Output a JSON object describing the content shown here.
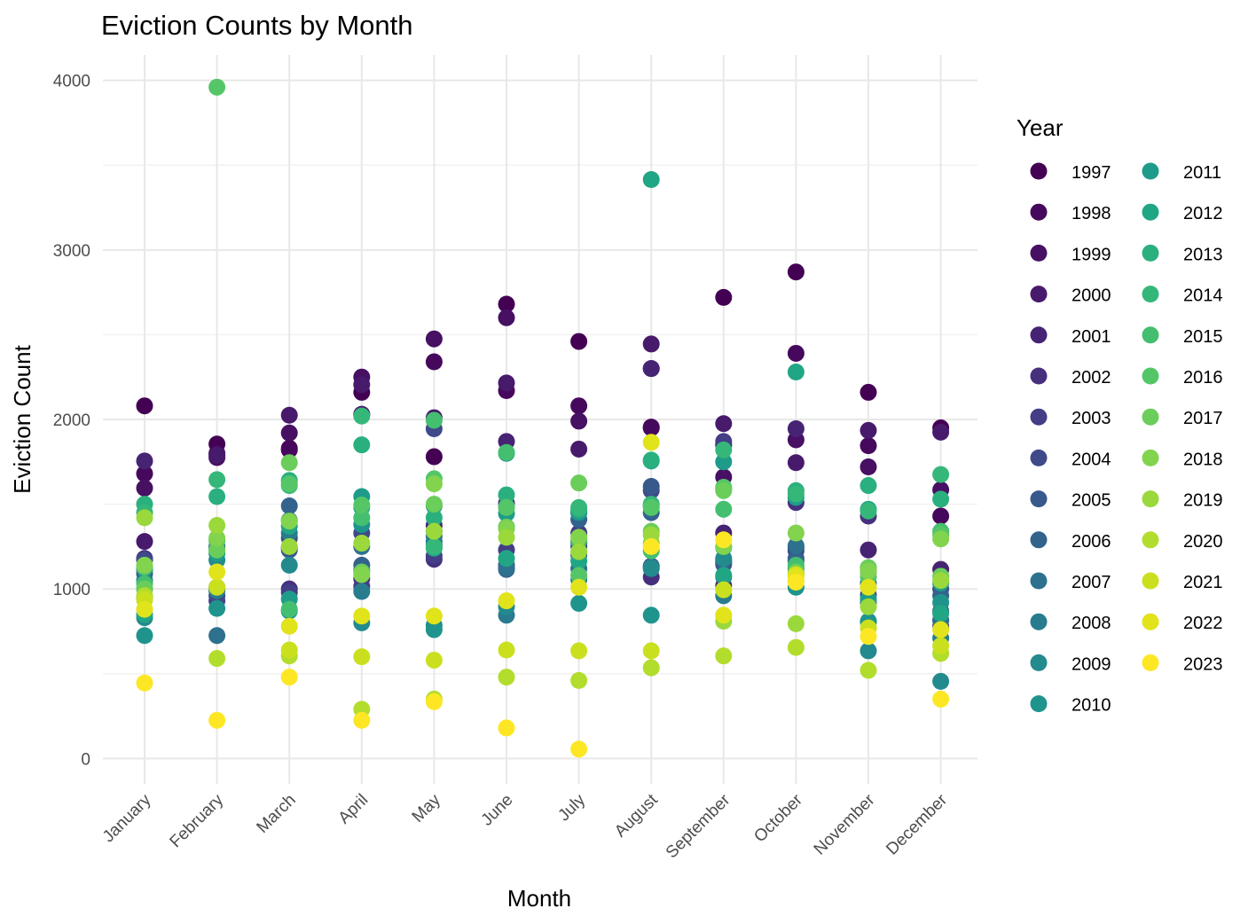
{
  "chart_data": {
    "type": "scatter",
    "title": "Eviction Counts by Month",
    "xlabel": "Month",
    "ylabel": "Eviction Count",
    "categories": [
      "January",
      "February",
      "March",
      "April",
      "May",
      "June",
      "July",
      "August",
      "September",
      "October",
      "November",
      "December"
    ],
    "ylim": [
      -150,
      4150
    ],
    "yticks": [
      0,
      1000,
      2000,
      3000,
      4000
    ],
    "grid": true,
    "legend": {
      "title": "Year",
      "position": "right"
    },
    "series": [
      {
        "name": "1997",
        "color": "#440154",
        "values": [
          2080,
          1855,
          1830,
          2160,
          1780,
          2680,
          2460,
          1950,
          2720,
          2870,
          2160,
          1950
        ]
      },
      {
        "name": "1998",
        "color": "#46085C",
        "values": [
          1680,
          1800,
          1820,
          2030,
          2340,
          2170,
          2080,
          1955,
          1850,
          2390,
          1845,
          1430
        ]
      },
      {
        "name": "1999",
        "color": "#471063",
        "values": [
          1595,
          1775,
          1920,
          2250,
          2475,
          2600,
          1990,
          2300,
          1660,
          1880,
          1720,
          1585
        ]
      },
      {
        "name": "2000",
        "color": "#481A6C",
        "values": [
          1280,
          1790,
          2025,
          2205,
          2010,
          2215,
          1825,
          2445,
          1975,
          1745,
          1935,
          1925
        ]
      },
      {
        "name": "2001",
        "color": "#472374",
        "values": [
          1755,
          1245,
          1245,
          2030,
          1375,
          1870,
          1275,
          2300,
          1330,
          1945,
          1230,
          1115
        ]
      },
      {
        "name": "2002",
        "color": "#46307E",
        "values": [
          1180,
          1000,
          1000,
          1060,
          1175,
          1505,
          1450,
          1070,
          1020,
          1510,
          1430,
          815
        ]
      },
      {
        "name": "2003",
        "color": "#433E85",
        "values": [
          1115,
          930,
          980,
          1015,
          1195,
          1230,
          1330,
          1135,
          1870,
          1245,
          1125,
          780
        ]
      },
      {
        "name": "2004",
        "color": "#3E4A89",
        "values": [
          1170,
          960,
          1300,
          1330,
          1945,
          1140,
          1250,
          1580,
          1160,
          1225,
          965,
          1000
        ]
      },
      {
        "name": "2005",
        "color": "#38598C",
        "values": [
          1090,
          1010,
          1230,
          1110,
          1340,
          1365,
          1200,
          1605,
          1145,
          1180,
          1100,
          870
        ]
      },
      {
        "name": "2006",
        "color": "#33638D",
        "values": [
          1000,
          1250,
          1490,
          1140,
          1260,
          1115,
          1410,
          1450,
          1170,
          1165,
          920,
          960
        ]
      },
      {
        "name": "2007",
        "color": "#2D718E",
        "values": [
          950,
          725,
          1405,
          1250,
          1280,
          1125,
          1120,
          1490,
          1070,
          1255,
          1035,
          815
        ]
      },
      {
        "name": "2008",
        "color": "#287C8E",
        "values": [
          1050,
          990,
          1330,
          985,
          1310,
          845,
          1055,
          1130,
          960,
          1120,
          805,
          710
        ]
      },
      {
        "name": "2009",
        "color": "#238A8D",
        "values": [
          830,
          1170,
          1140,
          800,
          785,
          895,
          1450,
          1120,
          1180,
          1090,
          635,
          455
        ]
      },
      {
        "name": "2010",
        "color": "#1F948C",
        "values": [
          725,
          885,
          870,
          1380,
          760,
          1800,
          915,
          845,
          1245,
          1010,
          810,
          920
        ]
      },
      {
        "name": "2011",
        "color": "#1E9C89",
        "values": [
          1120,
          1210,
          940,
          1545,
          1490,
          1445,
          1455,
          1755,
          1750,
          1540,
          940,
          1035
        ]
      },
      {
        "name": "2012",
        "color": "#21A685",
        "values": [
          850,
          1230,
          1370,
          1480,
          1240,
          1180,
          1165,
          3415,
          1080,
          2280,
          1470,
          855
        ]
      },
      {
        "name": "2013",
        "color": "#2AB07F",
        "values": [
          1500,
          1545,
          1640,
          1850,
          1420,
          1555,
          1470,
          1760,
          1590,
          1580,
          1610,
          1530
        ]
      },
      {
        "name": "2014",
        "color": "#35B779",
        "values": [
          1450,
          1645,
          1610,
          2020,
          1250,
          1485,
          1480,
          1500,
          1820,
          1560,
          1460,
          1675
        ]
      },
      {
        "name": "2015",
        "color": "#44BF70",
        "values": [
          1030,
          1285,
          880,
          1420,
          1995,
          1805,
          1285,
          1225,
          1470,
          1140,
          1125,
          1340
        ]
      },
      {
        "name": "2016",
        "color": "#55C667",
        "values": [
          1130,
          3960,
          1620,
          1495,
          1650,
          1480,
          1080,
          1480,
          1600,
          1045,
          1070,
          1320
        ]
      },
      {
        "name": "2017",
        "color": "#6BCD5A",
        "values": [
          1000,
          1230,
          1745,
          1100,
          1500,
          1365,
          1625,
          1340,
          1580,
          1100,
          1125,
          1075
        ]
      },
      {
        "name": "2018",
        "color": "#82D34D",
        "values": [
          1140,
          1300,
          1400,
          1085,
          1620,
          1355,
          1305,
          1270,
          1250,
          1330,
          1105,
          1295
        ]
      },
      {
        "name": "2019",
        "color": "#9AD83C",
        "values": [
          1420,
          1375,
          1250,
          1270,
          1340,
          1305,
          1220,
          1320,
          810,
          795,
          895,
          1050
        ]
      },
      {
        "name": "2020",
        "color": "#B2DD2D",
        "values": [
          960,
          590,
          605,
          290,
          350,
          480,
          460,
          535,
          605,
          655,
          520,
          620
        ]
      },
      {
        "name": "2021",
        "color": "#CAE01F",
        "values": [
          935,
          1010,
          640,
          600,
          580,
          640,
          635,
          635,
          995,
          1085,
          770,
          665
        ]
      },
      {
        "name": "2022",
        "color": "#E1E31B",
        "values": [
          880,
          1100,
          780,
          840,
          840,
          930,
          1010,
          1865,
          845,
          1075,
          1010,
          760
        ]
      },
      {
        "name": "2023",
        "color": "#FDE725",
        "values": [
          445,
          225,
          480,
          225,
          335,
          180,
          55,
          1250,
          1290,
          1040,
          720,
          350
        ]
      }
    ]
  }
}
